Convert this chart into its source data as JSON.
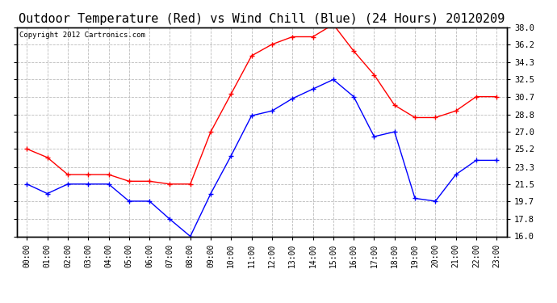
{
  "title": "Outdoor Temperature (Red) vs Wind Chill (Blue) (24 Hours) 20120209",
  "copyright": "Copyright 2012 Cartronics.com",
  "hours": [
    "00:00",
    "01:00",
    "02:00",
    "03:00",
    "04:00",
    "05:00",
    "06:00",
    "07:00",
    "08:00",
    "09:00",
    "10:00",
    "11:00",
    "12:00",
    "13:00",
    "14:00",
    "15:00",
    "16:00",
    "17:00",
    "18:00",
    "19:00",
    "20:00",
    "21:00",
    "22:00",
    "23:00"
  ],
  "red_temp": [
    25.2,
    24.3,
    22.5,
    22.5,
    22.5,
    21.8,
    21.8,
    21.5,
    21.5,
    27.0,
    31.0,
    35.0,
    36.2,
    37.0,
    37.0,
    38.3,
    35.5,
    33.0,
    29.8,
    28.5,
    28.5,
    29.2,
    30.7,
    30.7
  ],
  "blue_wc": [
    21.5,
    20.5,
    21.5,
    21.5,
    21.5,
    19.7,
    19.7,
    17.8,
    16.0,
    20.5,
    24.5,
    28.7,
    29.2,
    30.5,
    31.5,
    32.5,
    30.7,
    26.5,
    27.0,
    20.0,
    19.7,
    22.5,
    24.0,
    24.0
  ],
  "ylim": [
    16.0,
    38.0
  ],
  "yticks": [
    16.0,
    17.8,
    19.7,
    21.5,
    23.3,
    25.2,
    27.0,
    28.8,
    30.7,
    32.5,
    34.3,
    36.2,
    38.0
  ],
  "bg_color": "#ffffff",
  "grid_color": "#bbbbbb",
  "title_fontsize": 11,
  "copyright_fontsize": 6.5,
  "tick_fontsize": 7,
  "ytick_fontsize": 7.5
}
